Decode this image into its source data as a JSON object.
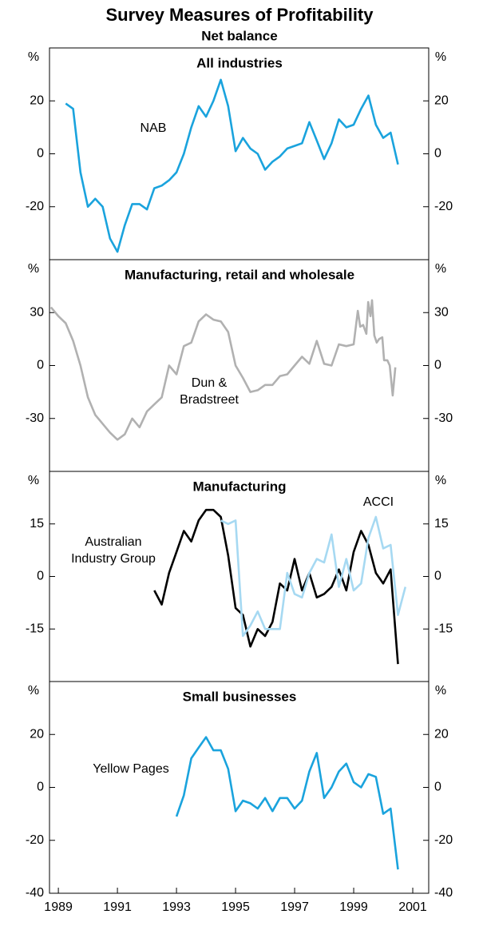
{
  "title": "Survey Measures of Profitability",
  "subtitle": "Net balance",
  "chart_data": [
    {
      "type": "line",
      "title": "All industries",
      "unit": "%",
      "xlim": [
        1988.7,
        2001.54
      ],
      "ylim": [
        -40,
        40
      ],
      "yticks": [
        -20,
        0,
        20
      ],
      "series": [
        {
          "name": "NAB",
          "color": "#1aa3dd",
          "x": [
            1989.25,
            1989.5,
            1989.75,
            1990,
            1990.25,
            1990.5,
            1990.75,
            1991,
            1991.25,
            1991.5,
            1991.75,
            1992,
            1992.25,
            1992.5,
            1992.75,
            1993,
            1993.25,
            1993.5,
            1993.75,
            1994,
            1994.25,
            1994.5,
            1994.75,
            1995,
            1995.25,
            1995.5,
            1995.75,
            1996,
            1996.25,
            1996.5,
            1996.75,
            1997,
            1997.25,
            1997.5,
            1997.75,
            1998,
            1998.25,
            1998.5,
            1998.75,
            1999,
            1999.25,
            1999.5,
            1999.75,
            2000,
            2000.25,
            2000.5
          ],
          "values": [
            19,
            17,
            -7,
            -20,
            -17,
            -20,
            -32,
            -37,
            -27,
            -19,
            -19,
            -21,
            -13,
            -12,
            -10,
            -7,
            0,
            10,
            18,
            14,
            20,
            28,
            18,
            1,
            6,
            2,
            0,
            -6,
            -3,
            -1,
            2,
            3,
            4,
            12,
            5,
            -2,
            4,
            13,
            10,
            11,
            17,
            22,
            11,
            6,
            8,
            -4
          ]
        }
      ]
    },
    {
      "type": "line",
      "title": "Manufacturing, retail and wholesale",
      "unit": "%",
      "xlim": [
        1988.7,
        2001.54
      ],
      "ylim": [
        -60,
        60
      ],
      "yticks": [
        -30,
        0,
        30
      ],
      "series": [
        {
          "name": "Dun & Bradstreet",
          "color": "#b1b1b1",
          "x": [
            1988.75,
            1989,
            1989.25,
            1989.5,
            1989.75,
            1990,
            1990.25,
            1990.5,
            1990.75,
            1991,
            1991.25,
            1991.5,
            1991.75,
            1992,
            1992.25,
            1992.5,
            1992.75,
            1993,
            1993.25,
            1993.5,
            1993.75,
            1994,
            1994.25,
            1994.5,
            1994.75,
            1995,
            1995.25,
            1995.5,
            1995.75,
            1996,
            1996.25,
            1996.5,
            1996.75,
            1997,
            1997.25,
            1997.5,
            1997.75,
            1998,
            1998.25,
            1998.5,
            1998.75,
            1999,
            1999.14,
            1999.22,
            1999.32,
            1999.43,
            1999.49,
            1999.57,
            1999.62,
            1999.7,
            1999.78,
            1999.86,
            1999.97,
            2000.03,
            2000.14,
            2000.22,
            2000.32,
            2000.41
          ],
          "values": [
            33,
            28,
            24,
            14,
            0,
            -18,
            -28,
            -33,
            -38,
            -42,
            -39,
            -30,
            -35,
            -26,
            -22,
            -18,
            0,
            -5,
            11,
            13,
            25,
            29,
            26,
            25,
            19,
            0,
            -7,
            -15,
            -14,
            -11,
            -11,
            -6,
            -5,
            0,
            5,
            1,
            14,
            1,
            0,
            12,
            11,
            12,
            31,
            22,
            23,
            18,
            36,
            28,
            37,
            17,
            13,
            15,
            16,
            3,
            3,
            0,
            -17,
            -1
          ]
        }
      ]
    },
    {
      "type": "line",
      "title": "Manufacturing",
      "unit": "%",
      "xlim": [
        1988.7,
        2001.54
      ],
      "ylim": [
        -30,
        30
      ],
      "yticks": [
        -15,
        0,
        15
      ],
      "series": [
        {
          "name": "Australian Industry Group",
          "color": "#000000",
          "x": [
            1992.25,
            1992.5,
            1992.75,
            1993,
            1993.25,
            1993.5,
            1993.75,
            1994,
            1994.25,
            1994.5,
            1994.75,
            1995,
            1995.25,
            1995.5,
            1995.75,
            1996,
            1996.25,
            1996.5,
            1996.75,
            1997,
            1997.25,
            1997.5,
            1997.75,
            1998,
            1998.25,
            1998.5,
            1998.75,
            1999,
            1999.25,
            1999.5,
            1999.75,
            2000,
            2000.25,
            2000.5
          ],
          "values": [
            -4,
            -8,
            1,
            7,
            13,
            10,
            16,
            19,
            19,
            17,
            6,
            -9,
            -11,
            -20,
            -15,
            -17,
            -13,
            -2,
            -4,
            5,
            -4,
            1,
            -6,
            -5,
            -3,
            2,
            -4,
            7,
            13,
            9,
            1,
            -2,
            2,
            -25
          ]
        },
        {
          "name": "ACCI",
          "color": "#a6d9f2",
          "x": [
            1994.5,
            1994.75,
            1995,
            1995.25,
            1995.5,
            1995.75,
            1996,
            1996.25,
            1996.5,
            1996.75,
            1997,
            1997.25,
            1997.5,
            1997.75,
            1998,
            1998.25,
            1998.5,
            1998.75,
            1999,
            1999.25,
            1999.5,
            1999.75,
            2000,
            2000.25,
            2000.5,
            2000.75
          ],
          "values": [
            16,
            15,
            16,
            -17,
            -14,
            -10,
            -15,
            -15,
            -15,
            1,
            -5,
            -6,
            1,
            5,
            4,
            12,
            -3,
            5,
            -4,
            -2,
            11,
            17,
            8,
            9,
            -11,
            -3
          ]
        }
      ]
    },
    {
      "type": "line",
      "title": "Small businesses",
      "unit": "%",
      "xlim": [
        1988.7,
        2001.54
      ],
      "ylim": [
        -40,
        40
      ],
      "yticks": [
        -40,
        -20,
        0,
        20
      ],
      "xticks": [
        1989,
        1991,
        1993,
        1995,
        1997,
        1999,
        2001
      ],
      "series": [
        {
          "name": "Yellow Pages",
          "color": "#1aa3dd",
          "x": [
            1993,
            1993.25,
            1993.5,
            1993.75,
            1994,
            1994.25,
            1994.5,
            1994.75,
            1995,
            1995.25,
            1995.5,
            1995.75,
            1996,
            1996.25,
            1996.5,
            1996.75,
            1997,
            1997.25,
            1997.5,
            1997.75,
            1998,
            1998.25,
            1998.5,
            1998.75,
            1999,
            1999.25,
            1999.5,
            1999.75,
            2000,
            2000.25,
            2000.5
          ],
          "values": [
            -11,
            -3,
            11,
            15,
            19,
            14,
            14,
            7,
            -9,
            -5,
            -6,
            -8,
            -4,
            -9,
            -4,
            -4,
            -8,
            -5,
            6,
            13,
            -4,
            0,
            6,
            9,
            2,
            0,
            5,
            4,
            -10,
            -8,
            -31
          ]
        }
      ]
    }
  ]
}
